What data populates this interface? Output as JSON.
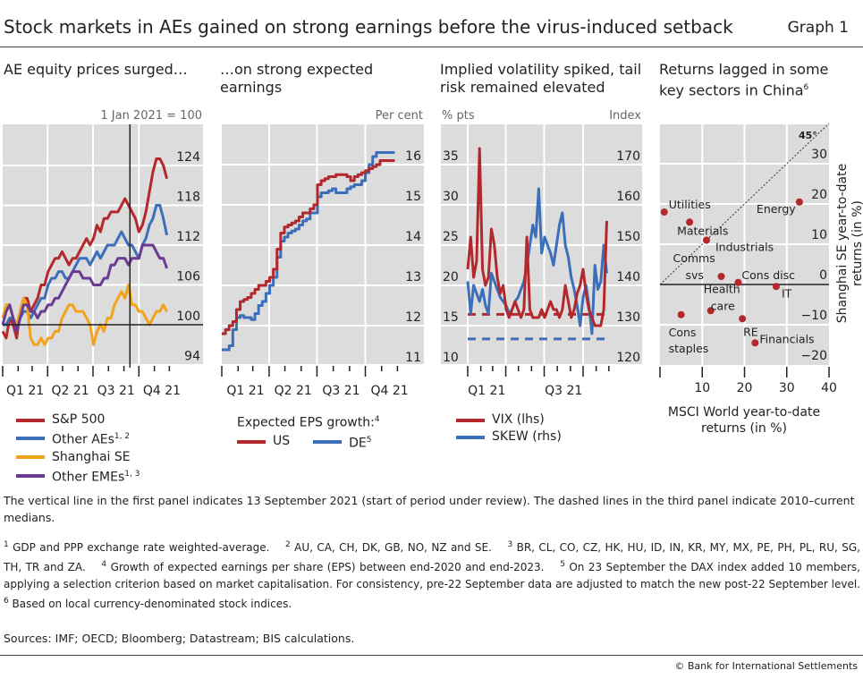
{
  "header": {
    "title": "Stock markets in AEs gained on strong earnings before the virus-induced setback",
    "graph_number": "Graph 1"
  },
  "colors": {
    "red": "#b3282d",
    "blue": "#3b6fba",
    "orange": "#f2a31b",
    "purple": "#6b3b92",
    "plot_bg": "#dcdcdc"
  },
  "panels": [
    {
      "title": "AE equity prices surged…",
      "unit": "1 Jan 2021 = 100"
    },
    {
      "title": "…on strong expected earnings",
      "unit": "Per cent"
    },
    {
      "title": "Implied volatility spiked, tail risk remained elevated",
      "unit_left": "% pts",
      "unit_right": "Index"
    },
    {
      "title": "Returns lagged in some key sectors in China",
      "title_sup": "6"
    }
  ],
  "legends": {
    "p1": [
      {
        "label": "S&P 500",
        "sup": ""
      },
      {
        "label": "Other AEs",
        "sup": "1, 2"
      },
      {
        "label": "Shanghai SE",
        "sup": ""
      },
      {
        "label": "Other EMEs",
        "sup": "1, 3"
      }
    ],
    "p2": {
      "heading": "Expected EPS growth:",
      "heading_sup": "4",
      "items": [
        {
          "label": "US",
          "sup": ""
        },
        {
          "label": "DE",
          "sup": "5"
        }
      ]
    },
    "p3": [
      {
        "label": "VIX (lhs)"
      },
      {
        "label": "SKEW (rhs)"
      }
    ]
  },
  "chart_data": [
    {
      "type": "line",
      "xlabel": "",
      "ylabel": "1 Jan 2021 = 100",
      "ylim": [
        94,
        130
      ],
      "yticks": [
        94,
        100,
        106,
        112,
        118,
        124
      ],
      "xticks": [
        "Q1 21",
        "Q2 21",
        "Q3 21",
        "Q4 21"
      ],
      "grid": true,
      "vline_date": "2021-09-13",
      "hline": 100,
      "x": [
        "2021-01-01",
        "2021-01-08",
        "2021-01-15",
        "2021-01-22",
        "2021-01-29",
        "2021-02-05",
        "2021-02-12",
        "2021-02-19",
        "2021-02-26",
        "2021-03-05",
        "2021-03-12",
        "2021-03-19",
        "2021-03-26",
        "2021-04-02",
        "2021-04-09",
        "2021-04-16",
        "2021-04-23",
        "2021-04-30",
        "2021-05-07",
        "2021-05-14",
        "2021-05-21",
        "2021-05-28",
        "2021-06-04",
        "2021-06-11",
        "2021-06-18",
        "2021-06-25",
        "2021-07-02",
        "2021-07-09",
        "2021-07-16",
        "2021-07-23",
        "2021-07-30",
        "2021-08-06",
        "2021-08-13",
        "2021-08-20",
        "2021-08-27",
        "2021-09-03",
        "2021-09-10",
        "2021-09-17",
        "2021-09-24",
        "2021-10-01",
        "2021-10-08",
        "2021-10-15",
        "2021-10-22",
        "2021-10-29",
        "2021-11-05",
        "2021-11-12",
        "2021-11-19",
        "2021-11-26"
      ],
      "series": [
        {
          "name": "S&P 500",
          "color": "red",
          "values": [
            99,
            98,
            101,
            100,
            98,
            102,
            104,
            104,
            102,
            103,
            104,
            106,
            106,
            108,
            109,
            110,
            110,
            111,
            110,
            109,
            110,
            110,
            111,
            112,
            113,
            112,
            113,
            115,
            114,
            116,
            116,
            117,
            117,
            117,
            118,
            119,
            118,
            117,
            116,
            114,
            115,
            117,
            120,
            123,
            125,
            125,
            124,
            122
          ]
        },
        {
          "name": "Other AEs",
          "color": "blue",
          "values": [
            100,
            100,
            101,
            101,
            99,
            101,
            102,
            102,
            101,
            102,
            103,
            104,
            104,
            106,
            107,
            107,
            108,
            108,
            107,
            107,
            108,
            109,
            110,
            110,
            110,
            109,
            110,
            111,
            110,
            111,
            112,
            112,
            112,
            113,
            114,
            113,
            112,
            112,
            111,
            110,
            112,
            113,
            115,
            116,
            118,
            118,
            116,
            113.5
          ]
        },
        {
          "name": "Shanghai SE",
          "color": "orange",
          "values": [
            101,
            103,
            103,
            101,
            100,
            102,
            104,
            103,
            98,
            97,
            97,
            98,
            97,
            98,
            98,
            99,
            99,
            101,
            102,
            103,
            103,
            102,
            102,
            102,
            101,
            100,
            97,
            99,
            100,
            99,
            101,
            101,
            103,
            104,
            105,
            104,
            106,
            103,
            103,
            102,
            102,
            101,
            100,
            101,
            102,
            102,
            103,
            102
          ]
        },
        {
          "name": "Other EMEs",
          "color": "purple",
          "values": [
            100,
            102,
            103,
            101,
            99,
            101,
            103,
            103,
            102,
            102,
            101,
            102,
            102,
            103,
            103,
            104,
            104,
            105,
            106,
            107,
            108,
            108,
            108,
            107,
            107,
            107,
            106,
            106,
            106,
            107,
            107,
            109,
            109,
            110,
            110,
            110,
            109,
            110,
            110,
            110,
            112,
            112,
            112,
            112,
            111,
            110,
            110,
            108.5
          ]
        }
      ]
    },
    {
      "type": "line",
      "xlabel": "",
      "ylabel": "Per cent",
      "ylim": [
        11,
        17
      ],
      "yticks": [
        11,
        12,
        13,
        14,
        15,
        16
      ],
      "xticks": [
        "Q1 21",
        "Q2 21",
        "Q3 21",
        "Q4 21"
      ],
      "grid": true,
      "x": [
        "2021-01-01",
        "2021-01-08",
        "2021-01-15",
        "2021-01-22",
        "2021-01-29",
        "2021-02-05",
        "2021-02-12",
        "2021-02-19",
        "2021-02-26",
        "2021-03-05",
        "2021-03-12",
        "2021-03-19",
        "2021-03-26",
        "2021-04-02",
        "2021-04-09",
        "2021-04-16",
        "2021-04-23",
        "2021-04-30",
        "2021-05-07",
        "2021-05-14",
        "2021-05-21",
        "2021-05-28",
        "2021-06-04",
        "2021-06-11",
        "2021-06-18",
        "2021-06-25",
        "2021-07-02",
        "2021-07-09",
        "2021-07-16",
        "2021-07-23",
        "2021-07-30",
        "2021-08-06",
        "2021-08-13",
        "2021-08-20",
        "2021-08-27",
        "2021-09-03",
        "2021-09-10",
        "2021-09-17",
        "2021-09-24",
        "2021-10-01",
        "2021-10-08",
        "2021-10-15",
        "2021-10-22",
        "2021-10-29",
        "2021-11-05",
        "2021-11-12",
        "2021-11-19",
        "2021-11-26"
      ],
      "series": [
        {
          "name": "US",
          "color": "red",
          "values": [
            11.8,
            11.9,
            12.0,
            12.1,
            12.4,
            12.6,
            12.65,
            12.7,
            12.8,
            12.9,
            13.0,
            13.0,
            13.1,
            13.2,
            13.4,
            13.9,
            14.3,
            14.45,
            14.5,
            14.55,
            14.6,
            14.7,
            14.8,
            14.8,
            14.9,
            15.0,
            15.5,
            15.6,
            15.65,
            15.7,
            15.7,
            15.75,
            15.75,
            15.75,
            15.7,
            15.6,
            15.7,
            15.75,
            15.8,
            15.85,
            15.9,
            15.95,
            16.0,
            16.1,
            16.1,
            16.1,
            16.1,
            16.1
          ]
        },
        {
          "name": "DE",
          "color": "blue",
          "values": [
            11.4,
            11.4,
            11.5,
            11.9,
            12.2,
            12.25,
            12.2,
            12.2,
            12.15,
            12.3,
            12.5,
            12.6,
            12.8,
            13.0,
            13.2,
            13.7,
            14.1,
            14.2,
            14.3,
            14.35,
            14.4,
            14.5,
            14.6,
            14.65,
            14.8,
            14.8,
            15.2,
            15.3,
            15.3,
            15.35,
            15.4,
            15.3,
            15.3,
            15.3,
            15.4,
            15.45,
            15.5,
            15.5,
            15.6,
            15.8,
            16.0,
            16.2,
            16.3,
            16.3,
            16.3,
            16.3,
            16.3,
            16.3
          ]
        }
      ]
    },
    {
      "type": "line",
      "xlabel": "",
      "ylabel_left": "% pts",
      "ylabel_right": "Index",
      "ylim_left": [
        10,
        40
      ],
      "ylim_right": [
        120,
        180
      ],
      "yticks_left": [
        10,
        15,
        20,
        25,
        30,
        35
      ],
      "yticks_right": [
        120,
        130,
        140,
        150,
        160,
        170
      ],
      "xticks": [
        "Q1 21",
        "Q3 21"
      ],
      "grid": true,
      "medians": {
        "VIX": 16.4,
        "SKEW": 126.7
      },
      "x": [
        "2021-01-01",
        "2021-01-08",
        "2021-01-15",
        "2021-01-22",
        "2021-01-29",
        "2021-02-05",
        "2021-02-12",
        "2021-02-19",
        "2021-02-26",
        "2021-03-05",
        "2021-03-12",
        "2021-03-19",
        "2021-03-26",
        "2021-04-02",
        "2021-04-09",
        "2021-04-16",
        "2021-04-23",
        "2021-04-30",
        "2021-05-07",
        "2021-05-14",
        "2021-05-21",
        "2021-05-28",
        "2021-06-04",
        "2021-06-11",
        "2021-06-18",
        "2021-06-25",
        "2021-07-02",
        "2021-07-09",
        "2021-07-16",
        "2021-07-23",
        "2021-07-30",
        "2021-08-06",
        "2021-08-13",
        "2021-08-20",
        "2021-08-27",
        "2021-09-03",
        "2021-09-10",
        "2021-09-17",
        "2021-09-24",
        "2021-10-01",
        "2021-10-08",
        "2021-10-15",
        "2021-10-22",
        "2021-10-29",
        "2021-11-05",
        "2021-11-12",
        "2021-11-19",
        "2021-11-26"
      ],
      "series": [
        {
          "name": "SKEW (rhs)",
          "axis": "right",
          "color": "blue",
          "values": [
            141,
            133,
            140,
            138,
            136,
            139,
            135,
            133,
            143,
            141,
            139,
            137,
            136,
            135,
            133,
            134,
            136,
            137,
            139,
            141,
            145,
            150,
            155,
            152,
            164,
            148,
            152,
            150,
            148,
            145,
            150,
            155,
            158,
            150,
            147,
            142,
            139,
            135,
            130,
            137,
            140,
            135,
            128,
            145,
            139,
            141,
            150,
            143
          ]
        },
        {
          "name": "VIX (lhs)",
          "axis": "left",
          "color": "red",
          "values": [
            22,
            26,
            21,
            23,
            37,
            22,
            20,
            21,
            27,
            25,
            21,
            19,
            20,
            17,
            16,
            17,
            18,
            17,
            16,
            17,
            26,
            17,
            16,
            16,
            16,
            17,
            16,
            17,
            18,
            17,
            17,
            16,
            17,
            20,
            18,
            16,
            17,
            19,
            20,
            22,
            19,
            17,
            16,
            15,
            15,
            15,
            17,
            28
          ]
        }
      ]
    },
    {
      "type": "scatter",
      "xlabel": "MSCI World year-to-date returns (in %)",
      "ylabel": "Shanghai SE year-to-date returns (in %)",
      "xlim": [
        0,
        40
      ],
      "ylim": [
        -22,
        40
      ],
      "xticks": [
        10,
        20,
        30,
        40
      ],
      "yticks": [
        -20,
        -10,
        0,
        10,
        20,
        30
      ],
      "diagonal_label": "45°",
      "grid": true,
      "points": [
        {
          "label": "Utilities",
          "x": 1,
          "y": 18
        },
        {
          "label": "Materials",
          "x": 7,
          "y": 15.5
        },
        {
          "label": "Industrials",
          "x": 11,
          "y": 11
        },
        {
          "label": "Comms svs",
          "x": 14.5,
          "y": 2
        },
        {
          "label": "Cons disc",
          "x": 18.5,
          "y": 0.5
        },
        {
          "label": "IT",
          "x": 27.5,
          "y": -0.5
        },
        {
          "label": "Energy",
          "x": 33,
          "y": 20.5
        },
        {
          "label": "Health care",
          "x": 12,
          "y": -6.5
        },
        {
          "label": "Cons staples",
          "x": 5,
          "y": -7.5
        },
        {
          "label": "RE",
          "x": 19.5,
          "y": -8.5
        },
        {
          "label": "Financials",
          "x": 22.5,
          "y": -14.5
        }
      ]
    }
  ],
  "note": "The vertical line in the first panel indicates 13 September 2021 (start of period under review). The dashed lines in the third panel indicate 2010–current medians.",
  "footnotes": [
    {
      "num": "1",
      "text": "GDP and PPP exchange rate weighted-average."
    },
    {
      "num": "2",
      "text": "AU, CA, CH, DK, GB, NO, NZ and SE."
    },
    {
      "num": "3",
      "text": "BR, CL, CO, CZ, HK, HU, ID, IN, KR, MY, MX, PE, PH, PL, RU, SG, TH, TR and ZA."
    },
    {
      "num": "4",
      "text": "Growth of expected earnings per share (EPS) between end-2020 and end-2023."
    },
    {
      "num": "5",
      "text": "On 23 September the DAX index added 10 members, applying a selection criterion based on market capitalisation. For consistency, pre-22 September data are adjusted to match the new post-22 September level."
    },
    {
      "num": "6",
      "text": "Based on local currency-denominated stock indices."
    }
  ],
  "sources": "Sources: IMF; OECD; Bloomberg; Datastream; BIS calculations.",
  "copyright": "© Bank for International Settlements"
}
